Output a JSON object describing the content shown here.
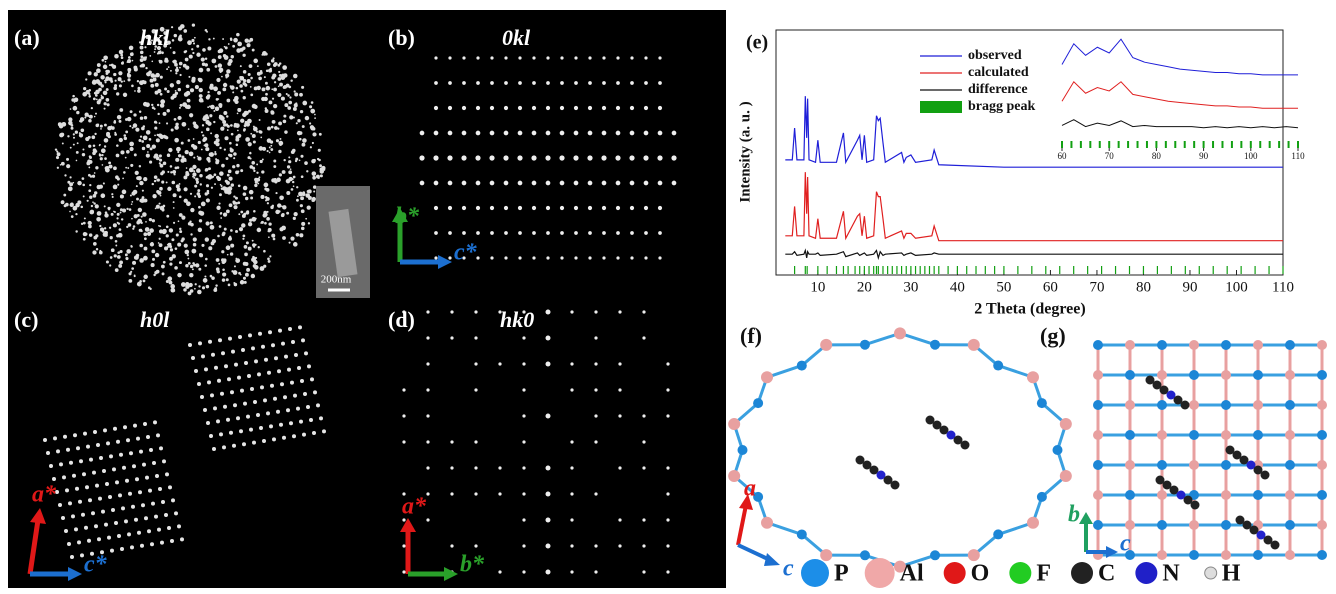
{
  "panels": {
    "a": {
      "label": "(a)",
      "title": "hkl",
      "scale_bar": "200nm"
    },
    "b": {
      "label": "(b)",
      "title": "0kl",
      "axis_v": "b*",
      "axis_h": "c*"
    },
    "c": {
      "label": "(c)",
      "title": "h0l",
      "axis_v": "a*",
      "axis_h": "c*"
    },
    "d": {
      "label": "(d)",
      "title": "hk0",
      "axis_v": "a*",
      "axis_h": "b*"
    },
    "f": {
      "label": "(f)",
      "axis_v": "a",
      "axis_h": "c"
    },
    "g": {
      "label": "(g)",
      "axis_v": "b",
      "axis_h": "c"
    }
  },
  "chart_data": {
    "type": "line",
    "label": "(e)",
    "xlabel": "2 Theta (degree)",
    "ylabel": "Intensity (a. u. )",
    "xlim": [
      1,
      110
    ],
    "xticks": [
      10,
      20,
      30,
      40,
      50,
      60,
      70,
      80,
      90,
      100,
      110
    ],
    "ylim": [
      0,
      100
    ],
    "series": [
      {
        "name": "observed",
        "color": "#1f1fd8",
        "x": [
          3,
          4.5,
          5,
          5.5,
          7,
          7.3,
          7.6,
          7.8,
          8.1,
          9.5,
          10,
          10.5,
          14,
          15.5,
          16,
          18.5,
          19,
          19.5,
          20,
          20.5,
          22,
          22.6,
          23,
          23.4,
          24,
          24.5,
          28,
          28.5,
          29,
          30,
          31,
          34.5,
          35,
          36,
          50,
          80,
          110
        ],
        "values": [
          47,
          47,
          60,
          47,
          47,
          73,
          56,
          72,
          47,
          46,
          55,
          46,
          46,
          58,
          46,
          55,
          57,
          47,
          57,
          46,
          47,
          65,
          63,
          64,
          54,
          46,
          50,
          46,
          48,
          49,
          46,
          47,
          51,
          45,
          44,
          44,
          44
        ]
      },
      {
        "name": "calculated",
        "color": "#e02020",
        "x": [
          3,
          4.5,
          5,
          5.5,
          7,
          7.3,
          7.6,
          7.8,
          8.1,
          9.5,
          10,
          10.5,
          14,
          15.5,
          16,
          18.5,
          19,
          19.5,
          20,
          20.5,
          22,
          22.6,
          23,
          23.4,
          24,
          24.5,
          28,
          28.5,
          29,
          30,
          31,
          34.5,
          35,
          36,
          50,
          80,
          110
        ],
        "values": [
          16,
          16,
          28,
          16,
          16,
          42,
          25,
          40,
          16,
          15,
          23,
          15,
          15,
          26,
          15,
          24,
          25,
          16,
          24,
          15,
          16,
          34,
          32,
          32,
          23,
          15,
          18,
          15,
          17,
          17,
          15,
          16,
          20,
          14,
          14,
          14,
          14
        ]
      },
      {
        "name": "difference",
        "color": "#111111",
        "x": [
          3,
          4.5,
          5,
          5.5,
          7,
          7.3,
          7.6,
          7.8,
          8.1,
          9.5,
          10,
          10.5,
          14,
          15.5,
          16,
          18.5,
          19,
          19.5,
          20,
          20.5,
          22,
          22.6,
          23,
          23.4,
          24,
          24.5,
          28,
          28.5,
          29,
          30,
          31,
          34.5,
          35,
          36,
          50,
          80,
          110
        ],
        "values": [
          8.5,
          8.5,
          9.5,
          8,
          8.5,
          10,
          7,
          9.5,
          8.5,
          8.5,
          9,
          8,
          8.5,
          9.5,
          7.5,
          9,
          8,
          8.5,
          9,
          8,
          8.5,
          10,
          7,
          9.5,
          8,
          8.5,
          9,
          8,
          8.5,
          9,
          8,
          8.5,
          9,
          8.5,
          8.5,
          8.5,
          8.5
        ]
      }
    ],
    "bragg_peaks": {
      "name": "bragg peak",
      "color": "#12a012",
      "x": [
        5,
        7.3,
        7.7,
        10,
        12,
        14,
        15.5,
        16.5,
        18,
        19,
        20,
        21,
        22,
        22.6,
        23,
        24,
        25,
        26,
        27,
        28,
        29,
        30,
        31,
        32,
        33,
        34,
        35,
        36,
        38,
        40,
        42,
        44,
        46,
        48,
        50,
        53,
        56,
        59,
        62,
        65,
        68,
        71,
        74,
        77,
        80,
        83,
        86,
        89,
        92,
        95,
        98,
        101,
        104,
        107,
        110
      ]
    },
    "inset": {
      "xlim": [
        60,
        110
      ],
      "xticks": [
        60,
        70,
        80,
        90,
        100,
        110
      ],
      "ylim": [
        0,
        100
      ],
      "x": [
        60,
        62.5,
        65,
        67.5,
        70,
        72.5,
        75,
        77.5,
        80,
        82.5,
        85,
        87.5,
        90,
        92.5,
        95,
        97.5,
        100,
        102.5,
        105,
        107.5,
        110
      ],
      "series": [
        {
          "values": [
            70,
            88,
            78,
            85,
            80,
            92,
            76,
            72,
            70,
            68,
            66,
            65,
            64,
            63,
            63,
            62,
            62,
            61,
            61,
            61,
            61
          ]
        },
        {
          "values": [
            38,
            55,
            45,
            50,
            47,
            55,
            44,
            42,
            40,
            38,
            37,
            36,
            35,
            34,
            34,
            33,
            33,
            32,
            32,
            32,
            32
          ]
        },
        {
          "values": [
            17,
            22,
            16,
            19,
            17,
            21,
            16,
            17,
            16,
            16,
            16,
            16,
            15,
            16,
            15,
            16,
            15,
            16,
            15,
            16,
            15
          ]
        }
      ],
      "bragg_x": [
        60,
        62,
        64,
        66,
        68,
        70,
        72,
        74,
        76,
        78,
        80,
        82,
        84,
        86,
        88,
        90,
        92,
        94,
        96,
        98,
        100,
        102,
        104,
        106,
        108,
        110
      ]
    }
  },
  "atom_legend": [
    "P",
    "Al",
    "O",
    "F",
    "C",
    "N",
    "H"
  ]
}
